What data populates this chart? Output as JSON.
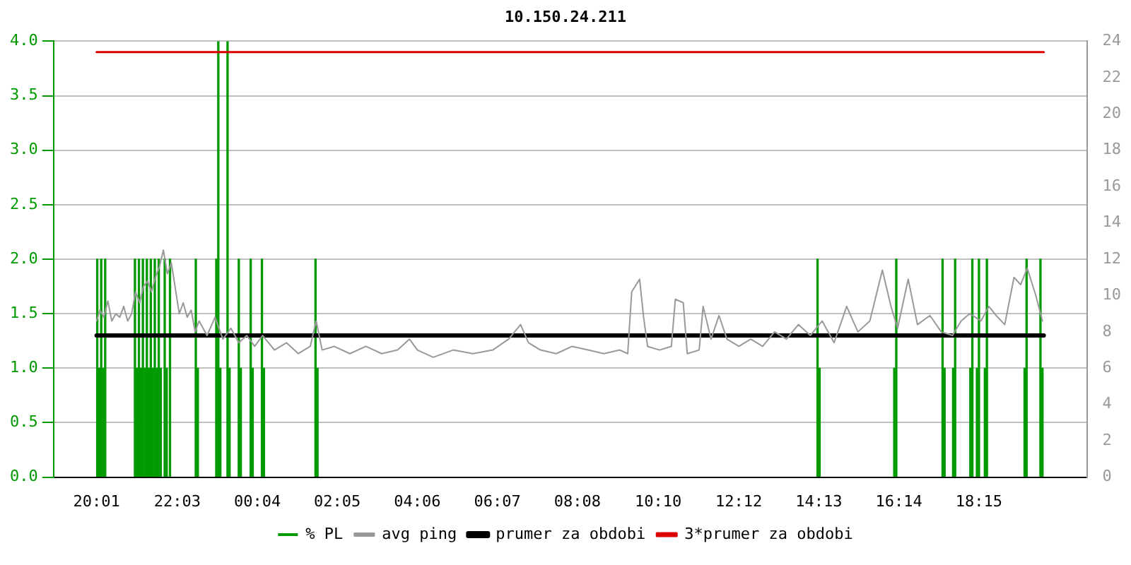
{
  "chart_data": {
    "type": "line",
    "title": "10.150.24.211",
    "x": [
      "--01-01T20:01",
      "--01-01T20:06",
      "--01-01T20:12",
      "--01-01T20:18",
      "--01-01T20:24",
      "--01-01T20:30",
      "--01-01T20:36",
      "--01-01T20:42",
      "--01-01T20:48",
      "--01-01T20:54",
      "--01-01T21:00",
      "--01-01T21:06",
      "--01-01T21:12",
      "--01-01T21:18",
      "--01-01T21:24",
      "--01-01T21:30",
      "--01-01T21:36",
      "--01-01T21:42",
      "--01-01T21:48",
      "--01-01T21:54",
      "--01-01T22:00",
      "--01-01T22:06",
      "--01-01T22:12",
      "--01-01T22:18",
      "--01-01T22:24",
      "--01-01T22:30",
      "--01-01T22:36",
      "--01-01T22:48",
      "--01-01T23:00",
      "--01-01T23:12",
      "--01-01T23:24",
      "--01-01T23:36",
      "--01-01T23:48",
      "--01-02T00:00",
      "--01-02T00:12",
      "--01-02T00:30",
      "--01-02T00:48",
      "--01-02T01:06",
      "--01-02T01:24",
      "--01-02T01:33",
      "--01-02T01:42",
      "--01-02T02:00",
      "--01-02T02:24",
      "--01-02T02:48",
      "--01-02T03:12",
      "--01-02T03:36",
      "--01-02T03:54",
      "--01-02T04:06",
      "--01-02T04:30",
      "--01-02T05:00",
      "--01-02T05:30",
      "--01-02T06:00",
      "--01-02T06:24",
      "--01-02T06:42",
      "--01-02T06:54",
      "--01-02T07:12",
      "--01-02T07:36",
      "--01-02T08:00",
      "--01-02T08:24",
      "--01-02T08:48",
      "--01-02T09:12",
      "--01-02T09:24",
      "--01-02T09:30",
      "--01-02T09:42",
      "--01-02T09:48",
      "--01-02T09:54",
      "--01-02T10:12",
      "--01-02T10:30",
      "--01-02T10:36",
      "--01-02T10:48",
      "--01-02T10:54",
      "--01-02T11:12",
      "--01-02T11:18",
      "--01-02T11:30",
      "--01-02T11:42",
      "--01-02T11:54",
      "--01-02T12:12",
      "--01-02T12:30",
      "--01-02T12:48",
      "--01-02T13:06",
      "--01-02T13:24",
      "--01-02T13:42",
      "--01-02T14:00",
      "--01-02T14:18",
      "--01-02T14:36",
      "--01-02T14:55",
      "--01-02T15:12",
      "--01-02T15:30",
      "--01-02T15:49",
      "--01-02T16:02",
      "--01-02T16:12",
      "--01-02T16:28",
      "--01-02T16:42",
      "--01-02T17:01",
      "--01-02T17:18",
      "--01-02T17:35",
      "--01-02T17:48",
      "--01-02T18:01",
      "--01-02T18:18",
      "--01-02T18:30",
      "--01-02T18:41",
      "--01-02T18:54",
      "--01-02T19:08",
      "--01-02T19:18",
      "--01-02T19:28",
      "--01-02T19:41",
      "--01-02T19:51"
    ],
    "series": [
      {
        "name": "% PL",
        "type": "bar",
        "color": "#009900",
        "x": [
          "--01-01T20:02",
          "--01-01T20:05",
          "--01-01T20:08",
          "--01-01T20:11",
          "--01-01T20:14",
          "--01-01T20:59",
          "--01-01T21:02",
          "--01-01T21:05",
          "--01-01T21:08",
          "--01-01T21:11",
          "--01-01T21:14",
          "--01-01T21:17",
          "--01-01T21:20",
          "--01-01T21:23",
          "--01-01T21:26",
          "--01-01T21:29",
          "--01-01T21:32",
          "--01-01T21:35",
          "--01-01T21:38",
          "--01-01T21:44",
          "--01-01T21:47",
          "--01-01T21:52",
          "--01-01T22:31",
          "--01-01T22:34",
          "--01-01T23:02",
          "--01-01T23:05",
          "--01-01T23:08",
          "--01-01T23:19",
          "--01-01T23:22",
          "--01-01T23:36",
          "--01-01T23:39",
          "--01-01T23:54",
          "--01-01T23:57",
          "--01-02T00:11",
          "--01-02T00:14",
          "--01-02T01:32",
          "--01-02T01:35",
          "--01-02T14:11",
          "--01-02T14:14",
          "--01-02T16:07",
          "--01-02T16:10",
          "--01-02T17:20",
          "--01-02T17:23",
          "--01-02T17:36",
          "--01-02T17:39",
          "--01-02T18:02",
          "--01-02T18:05",
          "--01-02T18:12",
          "--01-02T18:15",
          "--01-02T18:24",
          "--01-02T18:27",
          "--01-02T19:24",
          "--01-02T19:27",
          "--01-02T19:48",
          "--01-02T19:51"
        ],
        "values": [
          2,
          1,
          2,
          1,
          2,
          2,
          1,
          2,
          1,
          2,
          1,
          2,
          1,
          2,
          1,
          2,
          1,
          2,
          1,
          2,
          1,
          2,
          2,
          1,
          2,
          4,
          1,
          4,
          1,
          2,
          1,
          2,
          1,
          2,
          1,
          2,
          1,
          2,
          1,
          1,
          2,
          2,
          1,
          1,
          2,
          1,
          2,
          1,
          2,
          1,
          2,
          1,
          2,
          2,
          1
        ]
      },
      {
        "name": "avg ping",
        "axis": "y2",
        "color": "#999999",
        "values": [
          8.6,
          9.2,
          8.8,
          9.7,
          8.6,
          9.0,
          8.8,
          9.4,
          8.6,
          9.0,
          10.2,
          9.6,
          10.5,
          10.8,
          10.2,
          11.0,
          11.6,
          12.5,
          11.2,
          11.8,
          10.4,
          9.0,
          9.6,
          8.8,
          9.2,
          8.0,
          8.6,
          7.8,
          8.8,
          7.6,
          8.2,
          7.4,
          7.8,
          7.2,
          7.8,
          7.0,
          7.4,
          6.8,
          7.2,
          8.6,
          7.0,
          7.2,
          6.8,
          7.2,
          6.8,
          7.0,
          7.6,
          7.0,
          6.6,
          7.0,
          6.8,
          7.0,
          7.6,
          8.4,
          7.4,
          7.0,
          6.8,
          7.2,
          7.0,
          6.8,
          7.0,
          6.8,
          10.2,
          10.9,
          8.8,
          7.2,
          7.0,
          7.2,
          9.8,
          9.6,
          6.8,
          7.0,
          9.4,
          7.6,
          8.9,
          7.6,
          7.2,
          7.6,
          7.2,
          8.0,
          7.6,
          8.4,
          7.8,
          8.6,
          7.4,
          9.4,
          8.0,
          8.6,
          11.4,
          9.4,
          8.2,
          10.9,
          8.4,
          8.9,
          8.0,
          7.8,
          8.6,
          9.0,
          8.6,
          9.4,
          8.9,
          8.4,
          11.0,
          10.6,
          11.5,
          10.0,
          8.6
        ]
      },
      {
        "name": "prumer za obdobi",
        "axis": "y2",
        "color": "#000000",
        "x": [
          "--01-01T20:01",
          "--01-02T19:53"
        ],
        "values": [
          7.8,
          7.8
        ]
      },
      {
        "name": "3*prumer za obdobi",
        "axis": "y2",
        "color": "#dd0000",
        "x": [
          "--01-01T20:01",
          "--01-02T19:53"
        ],
        "values": [
          23.4,
          23.4
        ]
      }
    ],
    "xlim": [
      "--01-01T20:01",
      "--01-02T19:53"
    ],
    "xticks": [
      {
        "value": "--01-01T20:01",
        "label": "20:01"
      },
      {
        "value": "--01-01T22:03",
        "label": "22:03"
      },
      {
        "value": "--01-02T00:04",
        "label": "00:04"
      },
      {
        "value": "--01-02T02:05",
        "label": "02:05"
      },
      {
        "value": "--01-02T04:06",
        "label": "04:06"
      },
      {
        "value": "--01-02T06:07",
        "label": "06:07"
      },
      {
        "value": "--01-02T08:08",
        "label": "08:08"
      },
      {
        "value": "--01-02T10:10",
        "label": "10:10"
      },
      {
        "value": "--01-02T12:12",
        "label": "12:12"
      },
      {
        "value": "--01-02T14:13",
        "label": "14:13"
      },
      {
        "value": "--01-02T16:14",
        "label": "16:14"
      },
      {
        "value": "--01-02T18:15",
        "label": "18:15"
      }
    ],
    "ylim": [
      0,
      4
    ],
    "yticks": [
      {
        "value": 0,
        "label": "0.0"
      },
      {
        "value": 0.5,
        "label": "0.5"
      },
      {
        "value": 1,
        "label": "1.0"
      },
      {
        "value": 1.5,
        "label": "1.5"
      },
      {
        "value": 2,
        "label": "2.0"
      },
      {
        "value": 2.5,
        "label": "2.5"
      },
      {
        "value": 3,
        "label": "3.0"
      },
      {
        "value": 3.5,
        "label": "3.5"
      },
      {
        "value": 4,
        "label": "4.0"
      }
    ],
    "y2lim": [
      0,
      24
    ],
    "y2ticks": [
      0,
      2,
      4,
      6,
      8,
      10,
      12,
      14,
      16,
      18,
      20,
      22,
      24
    ],
    "grid": "y",
    "legend": "bottom",
    "marker": "none",
    "line_style": "solid"
  }
}
